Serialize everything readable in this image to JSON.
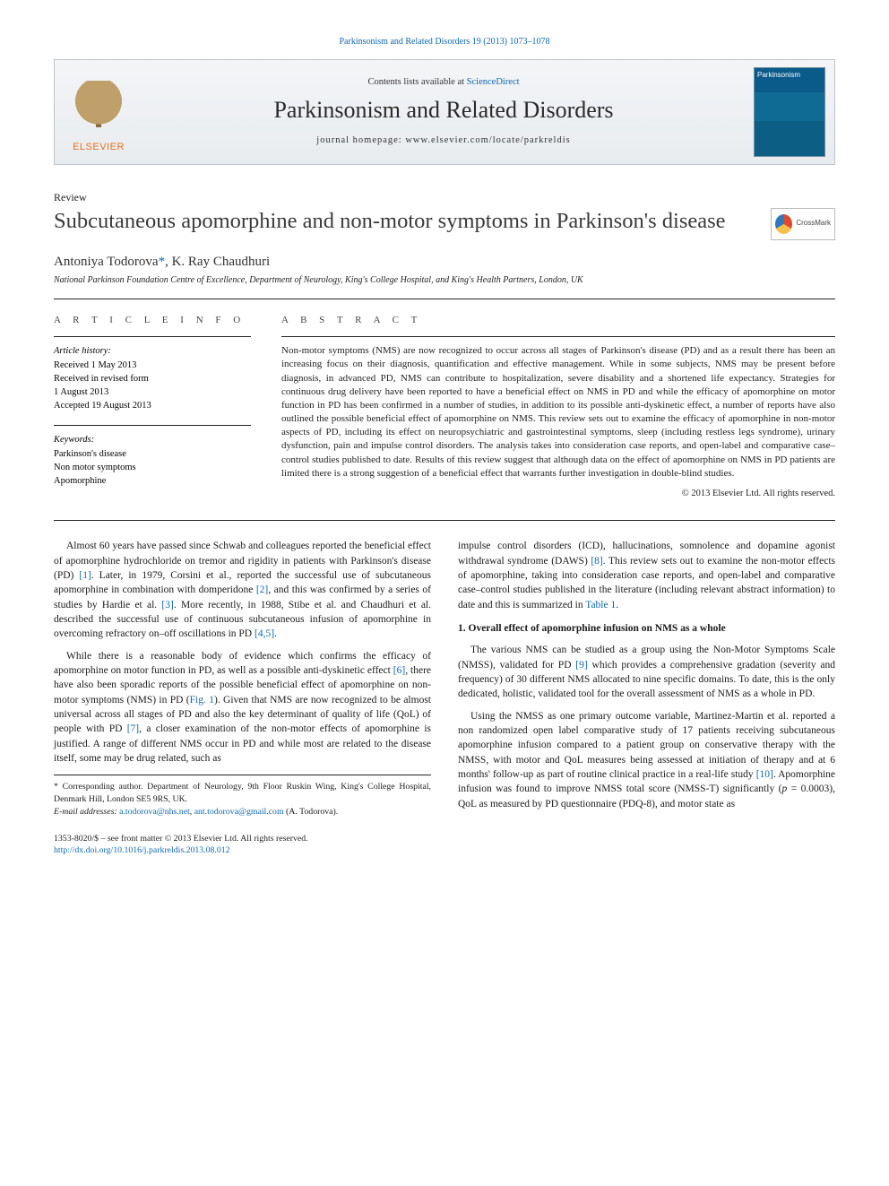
{
  "journal_ref": {
    "prefix": "",
    "journal": "Parkinsonism and Related Disorders 19 (2013) 1073–1078",
    "journal_link_text": "Parkinsonism and Related Disorders 19 (2013) 1073–1078"
  },
  "masthead": {
    "contents_prefix": "Contents lists available at ",
    "contents_link": "ScienceDirect",
    "journal_name": "Parkinsonism and Related Disorders",
    "homepage_prefix": "journal homepage: ",
    "homepage_url": "www.elsevier.com/locate/parkreldis",
    "elsevier_word": "ELSEVIER",
    "cover_title": "Parkinsonism"
  },
  "crossmark_label": "CrossMark",
  "article": {
    "type": "Review",
    "title": "Subcutaneous apomorphine and non-motor symptoms in Parkinson's disease",
    "authors_html": "Antoniya Todorova*, K. Ray Chaudhuri",
    "author1": "Antoniya Todorova",
    "author2": "K. Ray Chaudhuri",
    "affiliation": "National Parkinson Foundation Centre of Excellence, Department of Neurology, King's College Hospital, and King's Health Partners, London, UK"
  },
  "info": {
    "label": "A R T I C L E   I N F O",
    "history_hdr": "Article history:",
    "received": "Received 1 May 2013",
    "revised1": "Received in revised form",
    "revised2": "1 August 2013",
    "accepted": "Accepted 19 August 2013",
    "keywords_hdr": "Keywords:",
    "kw1": "Parkinson's disease",
    "kw2": "Non motor symptoms",
    "kw3": "Apomorphine"
  },
  "abstract": {
    "label": "A B S T R A C T",
    "text": "Non-motor symptoms (NMS) are now recognized to occur across all stages of Parkinson's disease (PD) and as a result there has been an increasing focus on their diagnosis, quantification and effective management. While in some subjects, NMS may be present before diagnosis, in advanced PD, NMS can contribute to hospitalization, severe disability and a shortened life expectancy. Strategies for continuous drug delivery have been reported to have a beneficial effect on NMS in PD and while the efficacy of apomorphine on motor function in PD has been confirmed in a number of studies, in addition to its possible anti-dyskinetic effect, a number of reports have also outlined the possible beneficial effect of apomorphine on NMS. This review sets out to examine the efficacy of apomorphine in non-motor aspects of PD, including its effect on neuropsychiatric and gastrointestinal symptoms, sleep (including restless legs syndrome), urinary dysfunction, pain and impulse control disorders. The analysis takes into consideration case reports, and open-label and comparative case–control studies published to date. Results of this review suggest that although data on the effect of apomorphine on NMS in PD patients are limited there is a strong suggestion of a beneficial effect that warrants further investigation in double-blind studies.",
    "copyright": "© 2013 Elsevier Ltd. All rights reserved."
  },
  "body": {
    "p1": "Almost 60 years have passed since Schwab and colleagues reported the beneficial effect of apomorphine hydrochloride on tremor and rigidity in patients with Parkinson's disease (PD) [1]. Later, in 1979, Corsini et al., reported the successful use of subcutaneous apomorphine in combination with domperidone [2], and this was confirmed by a series of studies by Hardie et al. [3]. More recently, in 1988, Stibe et al. and Chaudhuri et al. described the successful use of continuous subcutaneous infusion of apomorphine in overcoming refractory on–off oscillations in PD [4,5].",
    "p2": "While there is a reasonable body of evidence which confirms the efficacy of apomorphine on motor function in PD, as well as a possible anti-dyskinetic effect [6], there have also been sporadic reports of the possible beneficial effect of apomorphine on non-motor symptoms (NMS) in PD (Fig. 1). Given that NMS are now recognized to be almost universal across all stages of PD and also the key determinant of quality of life (QoL) of people with PD [7], a closer examination of the non-motor effects of apomorphine is justified. A range of different NMS occur in PD and while most are related to the disease itself, some may be drug related, such as",
    "p3": "impulse control disorders (ICD), hallucinations, somnolence and dopamine agonist withdrawal syndrome (DAWS) [8]. This review sets out to examine the non-motor effects of apomorphine, taking into consideration case reports, and open-label and comparative case–control studies published in the literature (including relevant abstract information) to date and this is summarized in Table 1.",
    "h1": "1. Overall effect of apomorphine infusion on NMS as a whole",
    "p4": "The various NMS can be studied as a group using the Non-Motor Symptoms Scale (NMSS), validated for PD [9] which provides a comprehensive gradation (severity and frequency) of 30 different NMS allocated to nine specific domains. To date, this is the only dedicated, holistic, validated tool for the overall assessment of NMS as a whole in PD.",
    "p5": "Using the NMSS as one primary outcome variable, Martinez-Martin et al. reported a non randomized open label comparative study of 17 patients receiving subcutaneous apomorphine infusion compared to a patient group on conservative therapy with the NMSS, with motor and QoL measures being assessed at initiation of therapy and at 6 months' follow-up as part of routine clinical practice in a real-life study [10]. Apomorphine infusion was found to improve NMSS total score (NMSS-T) significantly (p = 0.0003), QoL as measured by PD questionnaire (PDQ-8), and motor state as"
  },
  "footnote": {
    "corr": "* Corresponding author. Department of Neurology, 9th Floor Ruskin Wing, King's College Hospital, Denmark Hill, London SE5 9RS, UK.",
    "email_label": "E-mail addresses: ",
    "email1": "a.todorova@nhs.net",
    "email_sep": ", ",
    "email2": "ant.todorova@gmail.com",
    "email_suffix": " (A. Todorova)."
  },
  "footer": {
    "line1": "1353-8020/$ – see front matter © 2013 Elsevier Ltd. All rights reserved.",
    "doi": "http://dx.doi.org/10.1016/j.parkreldis.2013.08.012"
  },
  "colors": {
    "link": "#1068b0",
    "elsevier_orange": "#e4701e",
    "cover_blue": "#0a5a8a"
  }
}
